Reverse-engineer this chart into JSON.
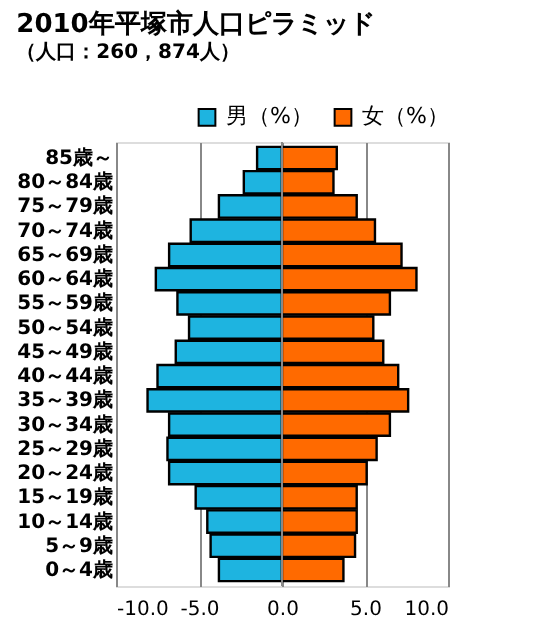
{
  "chart_data": {
    "type": "bar",
    "orientation": "horizontal",
    "title": "2010年平塚市人口ピラミッド",
    "subtitle": "（人口：260，874人）",
    "categories": [
      "85歳～",
      "80～84歳",
      "75～79歳",
      "70～74歳",
      "65～69歳",
      "60～64歳",
      "55～59歳",
      "50～54歳",
      "45～49歳",
      "40～44歳",
      "35～39歳",
      "30～34歳",
      "25～29歳",
      "20～24歳",
      "15～19歳",
      "10～14歳",
      "5～9歳",
      "0～4歳"
    ],
    "series": [
      {
        "name": "男（%）",
        "color": "#1eb4e0",
        "values": [
          -1.5,
          -2.3,
          -3.8,
          -5.5,
          -6.8,
          -7.6,
          -6.3,
          -5.6,
          -6.4,
          -7.5,
          -8.1,
          -6.8,
          -6.9,
          -6.8,
          -5.2,
          -4.5,
          -4.3,
          -3.8
        ]
      },
      {
        "name": "女（%）",
        "color": "#ff6a00",
        "values": [
          3.3,
          3.1,
          4.5,
          5.6,
          7.2,
          8.1,
          6.5,
          5.5,
          6.1,
          7.0,
          7.6,
          6.5,
          5.7,
          5.1,
          4.5,
          4.5,
          4.4,
          3.7
        ]
      }
    ],
    "xlim": [
      -10,
      10
    ],
    "xticks": [
      {
        "value": -10,
        "label": "-10.0"
      },
      {
        "value": -5,
        "label": "-5.0"
      },
      {
        "value": 0,
        "label": "0.0"
      },
      {
        "value": 5,
        "label": "5.0"
      },
      {
        "value": 10,
        "label": "10.0"
      }
    ],
    "grid": "x",
    "legend": "top right",
    "stacked": true
  }
}
